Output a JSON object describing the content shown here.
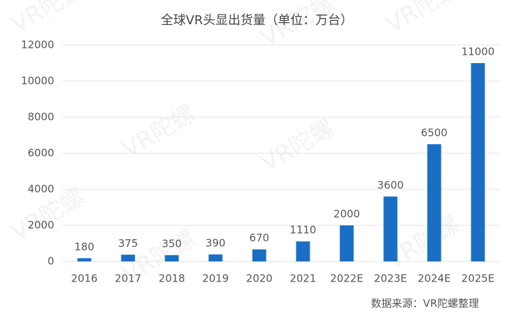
{
  "chart_data": {
    "type": "bar",
    "title": "全球VR头显出货量（单位：万台）",
    "categories": [
      "2016",
      "2017",
      "2018",
      "2019",
      "2020",
      "2021",
      "2022E",
      "2023E",
      "2024E",
      "2025E"
    ],
    "values": [
      180,
      375,
      350,
      390,
      670,
      1110,
      2000,
      3600,
      6500,
      11000
    ],
    "color": "#1a6fc4",
    "ylim": [
      0,
      12000
    ],
    "yticks": [
      0,
      2000,
      4000,
      6000,
      8000,
      10000,
      12000
    ],
    "grid": true,
    "source": "数据来源：VR陀螺整理",
    "watermark": "VR陀螺"
  }
}
